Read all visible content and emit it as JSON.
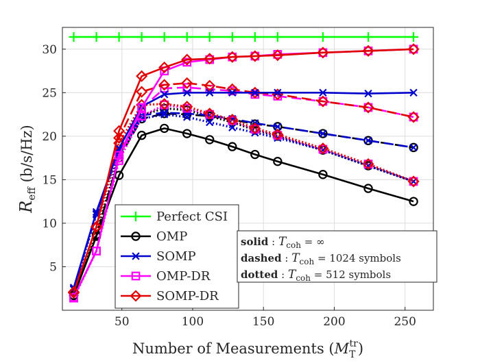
{
  "chart_data": {
    "type": "line",
    "xlabel": "Number of Measurements (M_T^tr)",
    "ylabel": "R_eff (b/s/Hz)",
    "xlim": [
      8,
      270
    ],
    "ylim": [
      0,
      32.5
    ],
    "xticks": [
      50,
      100,
      150,
      200,
      250
    ],
    "yticks": [
      5,
      10,
      15,
      20,
      25,
      30
    ],
    "grid": true,
    "legend_position": "bottom-left",
    "x": [
      16,
      32,
      48,
      64,
      80,
      96,
      112,
      128,
      144,
      160,
      192,
      224,
      256
    ],
    "series": [
      {
        "name": "Perfect CSI",
        "color": "#00ff00",
        "marker": "plus",
        "style": "solid",
        "values": [
          31.4,
          31.4,
          31.4,
          31.4,
          31.4,
          31.4,
          31.4,
          31.4,
          31.4,
          31.4,
          31.4,
          31.4,
          31.4
        ]
      },
      {
        "name": "OMP",
        "color": "#000000",
        "marker": "circle",
        "style": "solid",
        "values": [
          1.7,
          8.5,
          15.5,
          20.1,
          20.9,
          20.3,
          19.6,
          18.8,
          17.9,
          17.1,
          15.6,
          14.0,
          12.5
        ]
      },
      {
        "name": "",
        "color": "#000000",
        "marker": "circle",
        "style": "dashed",
        "values": [
          1.7,
          8.6,
          17.5,
          22.0,
          22.6,
          22.5,
          22.3,
          21.9,
          21.4,
          21.1,
          20.3,
          19.5,
          18.7
        ]
      },
      {
        "name": "",
        "color": "#000000",
        "marker": "circle",
        "style": "dotted",
        "values": [
          1.7,
          8.7,
          17.8,
          22.4,
          23.2,
          23.0,
          22.3,
          21.6,
          20.7,
          20.0,
          18.4,
          16.6,
          14.8
        ]
      },
      {
        "name": "SOMP",
        "color": "#0000cc",
        "marker": "x",
        "style": "solid",
        "values": [
          2.6,
          11.3,
          18.6,
          23.4,
          24.8,
          25.0,
          25.0,
          25.0,
          25.0,
          25.0,
          25.0,
          24.9,
          25.0
        ]
      },
      {
        "name": "",
        "color": "#0000cc",
        "marker": "x",
        "style": "dashed",
        "values": [
          2.5,
          11.1,
          18.3,
          22.4,
          22.7,
          22.6,
          22.4,
          22.0,
          21.5,
          21.1,
          20.3,
          19.5,
          18.7
        ]
      },
      {
        "name": "",
        "color": "#0000cc",
        "marker": "x",
        "style": "dotted",
        "values": [
          2.4,
          11.0,
          18.0,
          22.0,
          22.5,
          22.2,
          21.6,
          21.0,
          20.4,
          19.8,
          18.4,
          16.6,
          14.8
        ]
      },
      {
        "name": "OMP-DR",
        "color": "#ff00ff",
        "marker": "square",
        "style": "solid",
        "values": [
          1.5,
          6.8,
          17.8,
          23.3,
          27.5,
          28.5,
          28.8,
          29.1,
          29.2,
          29.4,
          29.6,
          29.8,
          30.0
        ]
      },
      {
        "name": "",
        "color": "#ff00ff",
        "marker": "square",
        "style": "dashed",
        "values": [
          1.5,
          6.8,
          17.5,
          23.2,
          25.5,
          25.6,
          25.4,
          25.2,
          24.8,
          24.6,
          24.0,
          23.3,
          22.2
        ]
      },
      {
        "name": "",
        "color": "#ff00ff",
        "marker": "square",
        "style": "dotted",
        "values": [
          1.4,
          6.8,
          17.2,
          22.3,
          23.6,
          23.2,
          22.5,
          21.8,
          20.8,
          20.1,
          18.5,
          16.8,
          14.8
        ]
      },
      {
        "name": "SOMP-DR",
        "color": "#e00000",
        "marker": "diamond",
        "style": "solid",
        "values": [
          2.1,
          9.6,
          20.6,
          26.9,
          27.9,
          28.8,
          28.9,
          29.1,
          29.2,
          29.3,
          29.6,
          29.8,
          30.0
        ]
      },
      {
        "name": "",
        "color": "#e00000",
        "marker": "diamond",
        "style": "dashed",
        "values": [
          2.1,
          9.6,
          19.8,
          25.1,
          25.9,
          26.1,
          25.8,
          25.4,
          25.0,
          24.8,
          24.0,
          23.3,
          22.2
        ]
      },
      {
        "name": "",
        "color": "#e00000",
        "marker": "diamond",
        "style": "dotted",
        "values": [
          2.0,
          9.5,
          19.2,
          23.6,
          23.7,
          23.4,
          22.6,
          21.9,
          20.9,
          20.2,
          18.6,
          16.8,
          14.8
        ]
      }
    ],
    "annotations": [
      {
        "label": "solid",
        "text": " : T_coh = ∞"
      },
      {
        "label": "dashed",
        "text": " : T_coh = 1024 symbols"
      },
      {
        "label": "dotted",
        "text": " : T_coh = 512 symbols"
      }
    ]
  },
  "axis_text": {
    "x_main": "Number of Measurements (",
    "x_sym": "M",
    "x_sub": "T",
    "x_sup": "tr",
    "x_close": ")",
    "y_sym": "R",
    "y_sub": "eff",
    "y_unit": " (b/s/Hz)",
    "coh_sym": "T",
    "coh_sub": "coh"
  }
}
